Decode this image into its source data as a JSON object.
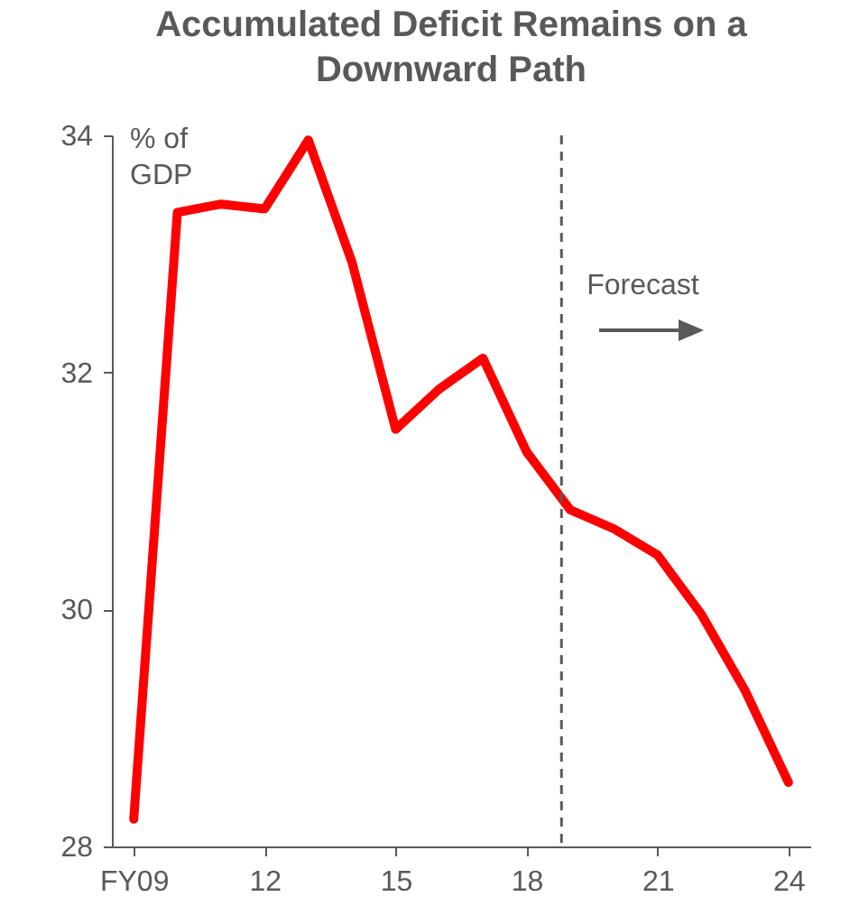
{
  "chart_data": {
    "type": "line",
    "title": "Accumulated Deficit Remains on a Downward Path",
    "ylabel": "% of GDP",
    "x": [
      2009,
      2010,
      2011,
      2012,
      2013,
      2014,
      2015,
      2016,
      2017,
      2018,
      2019,
      2020,
      2021,
      2022,
      2023,
      2024
    ],
    "series": [
      {
        "color": "#ff0000",
        "values": [
          28.23,
          33.35,
          33.42,
          33.38,
          33.96,
          32.93,
          31.52,
          31.86,
          32.12,
          31.33,
          30.84,
          30.68,
          30.46,
          29.96,
          29.32,
          28.54
        ]
      }
    ],
    "xlim": [
      2008.5,
      2024.5
    ],
    "xticks": [
      {
        "value": 2009,
        "label": "FY09"
      },
      {
        "value": 2012,
        "label": "12"
      },
      {
        "value": 2015,
        "label": "15"
      },
      {
        "value": 2018,
        "label": "18"
      },
      {
        "value": 2021,
        "label": "21"
      },
      {
        "value": 2024,
        "label": "24"
      }
    ],
    "ylim": [
      28,
      34
    ],
    "yticks": [
      28,
      30,
      32,
      34
    ],
    "ref_lines": [
      {
        "axis": "x",
        "value": 2018.8,
        "label": "Forecast",
        "color": "#595959",
        "line_style": "dashed"
      }
    ],
    "grid": false,
    "marker": "none",
    "line_style": "solid"
  }
}
